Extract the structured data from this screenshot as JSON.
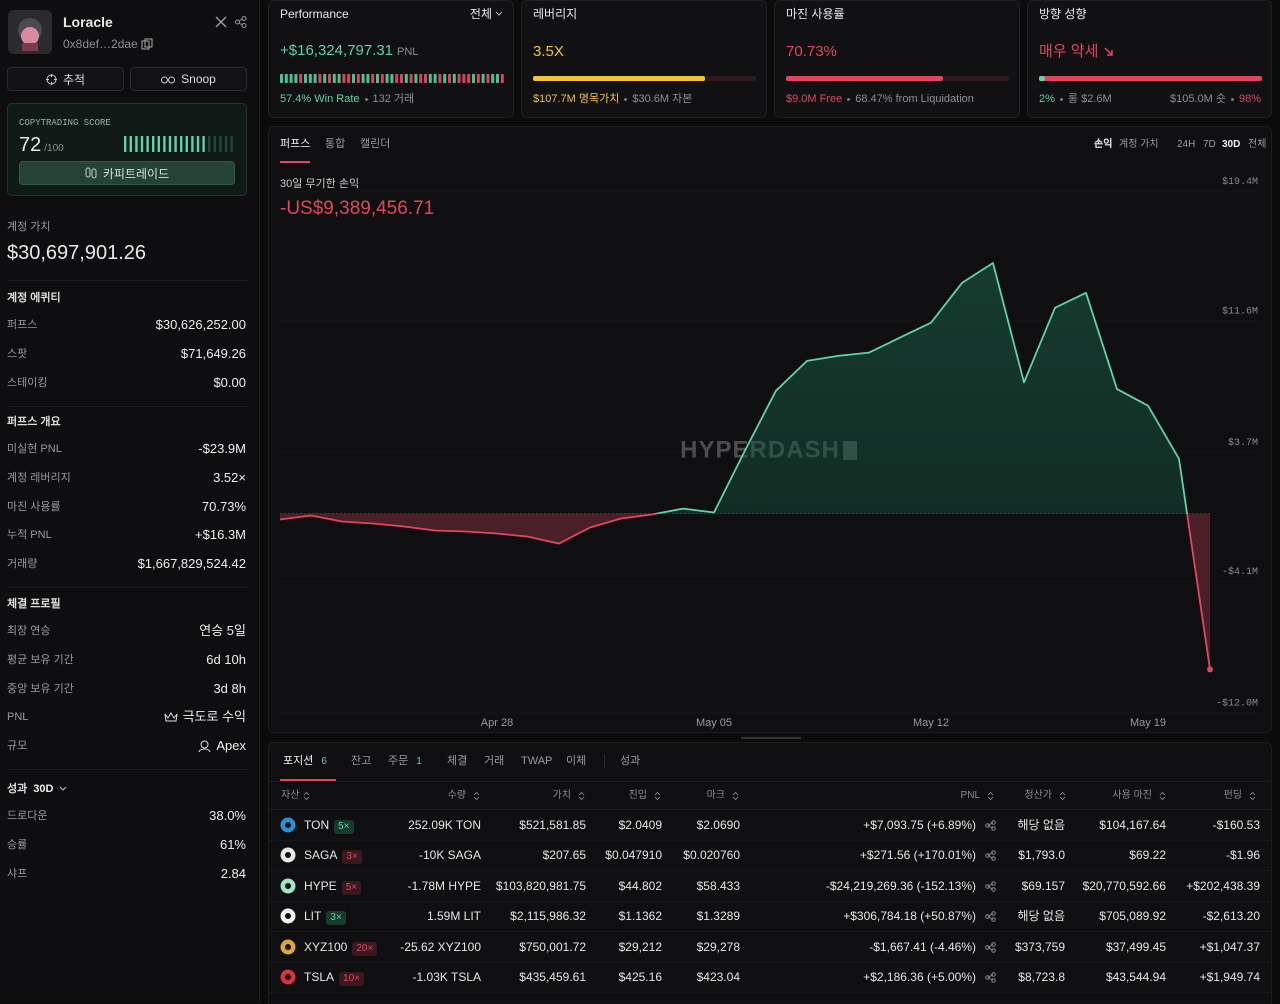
{
  "profile": {
    "name": "Loracle",
    "address": "0x8def…2dae",
    "buttons": [
      "추적",
      "Snoop"
    ]
  },
  "copytrading": {
    "label": "COPYTRADING SCORE",
    "score": 72,
    "max": "/100",
    "button": "카피트레이드"
  },
  "account_value": {
    "label": "계정 가치",
    "value": "$30,697,901.26"
  },
  "sections": [
    {
      "title": "계정 에퀴티",
      "rows": [
        {
          "label": "퍼프스",
          "value": "$30,626,252.00"
        },
        {
          "label": "스팟",
          "value": "$71,649.26"
        },
        {
          "label": "스테이킹",
          "value": "$0.00"
        }
      ]
    },
    {
      "title": "퍼프스 개요",
      "rows": [
        {
          "label": "미실현 PNL",
          "value": "-$23.9M"
        },
        {
          "label": "계정 레버리지",
          "value": "3.52×"
        },
        {
          "label": "마진 사용률",
          "value": "70.73%"
        },
        {
          "label": "누적 PNL",
          "value": "+$16.3M"
        },
        {
          "label": "거래량",
          "value": "$1,667,829,524.42"
        }
      ]
    },
    {
      "title": "체결 프로필",
      "rows": [
        {
          "label": "최장 연승",
          "value": "연승 5일"
        },
        {
          "label": "평균 보유 기간",
          "value": "6d 10h"
        },
        {
          "label": "중앙 보유 기간",
          "value": "3d 8h"
        },
        {
          "label": "PNL",
          "value": "극도로 수익"
        },
        {
          "label": "규모",
          "value": "Apex"
        }
      ]
    },
    {
      "title": "성과",
      "period": "30D",
      "rows": [
        {
          "label": "드로다운",
          "value": "38.0%"
        },
        {
          "label": "승률",
          "value": "61%"
        },
        {
          "label": "샤프",
          "value": "2.84"
        }
      ]
    }
  ],
  "cards": {
    "performance": {
      "title": "Performance",
      "filter": "전체",
      "pnl": "+$16,324,797.31",
      "unit": "PNL",
      "win_rate": "57.4%",
      "win_rate_label": "Win Rate",
      "trades": "132 거래"
    },
    "leverage": {
      "title": "레버리지",
      "value": "3.5X",
      "notional": "$107.7M 명목가치",
      "equity": "$30.6M 자본"
    },
    "margin": {
      "title": "마진 사용률",
      "value": "70.73%",
      "free": "$9.0M Free",
      "liquidation": "68.47% from Liquidation"
    },
    "bias": {
      "title": "방향 성향",
      "value": "매우 약세",
      "long_pct": "2%",
      "long": "롱 $2.6M",
      "short": "$105.0M 숏",
      "short_pct": "98%"
    }
  },
  "chart_tabs": [
    "퍼프스",
    "통합",
    "캘린더"
  ],
  "chart_toggles": [
    "손익",
    "계정 가치"
  ],
  "ranges": [
    "24H",
    "7D",
    "30D",
    "전체"
  ],
  "chart_data": {
    "type": "line",
    "title": "30일 무기한 손익",
    "headline": "-US$9,389,456.71",
    "watermark": "HYPERDASH",
    "categories": [
      null,
      null,
      null,
      null,
      null,
      null,
      null,
      "Apr 28",
      null,
      null,
      null,
      null,
      null,
      null,
      "May 05",
      null,
      null,
      null,
      null,
      null,
      null,
      "May 12",
      null,
      null,
      null,
      null,
      null,
      null,
      "May 19",
      null,
      null
    ],
    "values": [
      -0.36,
      -0.12,
      -0.48,
      -0.6,
      -0.78,
      -1.02,
      -1.08,
      -1.2,
      -1.39,
      -1.81,
      -0.84,
      -0.3,
      -0.06,
      0.3,
      0.06,
      3.8,
      7.4,
      9.2,
      9.5,
      9.7,
      10.6,
      11.5,
      13.9,
      15.1,
      7.9,
      12.4,
      13.3,
      7.5,
      6.5,
      3.3,
      -9.39
    ],
    "ylim": [
      -12.2,
      20.4
    ],
    "yticks": [
      {
        "value": 19.4,
        "label": "$19.4M"
      },
      {
        "value": 11.6,
        "label": "$11.6M"
      },
      {
        "value": 3.7,
        "label": "$3.7M"
      },
      {
        "value": -4.1,
        "label": "-$4.1M"
      },
      {
        "value": -12.0,
        "label": "-$12.0M"
      }
    ],
    "up_color": "#5fd3a5",
    "down_color": "#e0475f"
  },
  "positions": {
    "tabs": [
      {
        "label": "포지션",
        "count": 6
      },
      {
        "label": "잔고"
      },
      {
        "label": "주문",
        "count": 1
      },
      {
        "label": "체결"
      },
      {
        "label": "거래"
      },
      {
        "label": "TWAP"
      },
      {
        "label": "이체"
      },
      {
        "label": "성과"
      }
    ],
    "columns": [
      "자산",
      "수량",
      "가치",
      "진입",
      "마크",
      "PNL",
      "청산가",
      "사용 마진",
      "펀딩"
    ],
    "rows": [
      {
        "asset": "TON",
        "leverage": "5×",
        "size": "252.09K TON",
        "value": "$521,581.85",
        "entry": "$2.0409",
        "mark": "$2.0690",
        "pnl": "+$7,093.75 (+6.89%)",
        "liquidation": "해당 없음",
        "margin": "$104,167.64",
        "funding": "-$160.53"
      },
      {
        "asset": "SAGA",
        "leverage": "3×",
        "size": "-10K SAGA",
        "value": "$207.65",
        "entry": "$0.047910",
        "mark": "$0.020760",
        "pnl": "+$271.56 (+170.01%)",
        "liquidation": "$1,793.0",
        "margin": "$69.22",
        "funding": "-$1.96"
      },
      {
        "asset": "HYPE",
        "leverage": "5×",
        "size": "-1.78M HYPE",
        "value": "$103,820,981.75",
        "entry": "$44.802",
        "mark": "$58.433",
        "pnl": "-$24,219,269.36 (-152.13%)",
        "liquidation": "$69.157",
        "margin": "$20,770,592.66",
        "funding": "+$202,438.39"
      },
      {
        "asset": "LIT",
        "leverage": "3×",
        "size": "1.59M LIT",
        "value": "$2,115,986.32",
        "entry": "$1.1362",
        "mark": "$1.3289",
        "pnl": "+$306,784.18 (+50.87%)",
        "liquidation": "해당 없음",
        "margin": "$705,089.92",
        "funding": "-$2,613.20"
      },
      {
        "asset": "XYZ100",
        "leverage": "20×",
        "size": "-25.62 XYZ100",
        "value": "$750,001.72",
        "entry": "$29,212",
        "mark": "$29,278",
        "pnl": "-$1,667.41 (-4.46%)",
        "liquidation": "$373,759",
        "margin": "$37,499.45",
        "funding": "+$1,047.37"
      },
      {
        "asset": "TSLA",
        "leverage": "10×",
        "size": "-1.03K TSLA",
        "value": "$435,459.61",
        "entry": "$425.16",
        "mark": "$423.04",
        "pnl": "+$2,186.36 (+5.00%)",
        "liquidation": "$8,723.8",
        "margin": "$43,544.94",
        "funding": "+$1,949.74"
      }
    ]
  }
}
